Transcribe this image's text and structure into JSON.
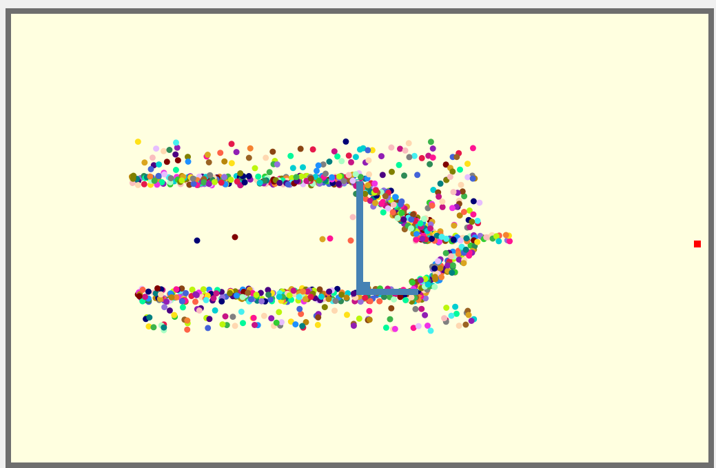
{
  "window": {
    "background_color": "#ffffe0",
    "border_color": "#6e6e6e"
  },
  "walls": {
    "color": "#4682b4"
  },
  "target": {
    "color": "#ff0000"
  },
  "particles": {
    "palette": [
      "#e6194b",
      "#3cb44b",
      "#ffe119",
      "#4363d8",
      "#f58231",
      "#911eb4",
      "#46f0f0",
      "#f032e6",
      "#bcf60c",
      "#fabebe",
      "#008080",
      "#e6beff",
      "#9a6324",
      "#800000",
      "#aaffc3",
      "#808000",
      "#ffd8b1",
      "#000075",
      "#808080",
      "#1e90ff",
      "#ff1493",
      "#00ced1",
      "#32cd32",
      "#8b4513",
      "#9370db",
      "#daa520",
      "#2e8b57",
      "#ff6347",
      "#4b0082",
      "#00fa9a",
      "#c71585",
      "#b8860b"
    ]
  }
}
